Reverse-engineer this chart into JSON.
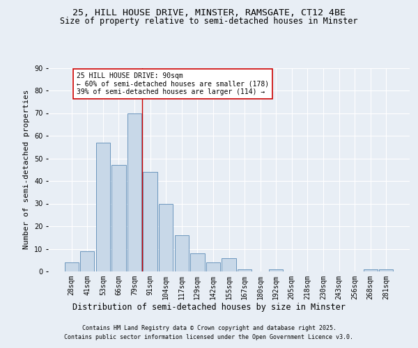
{
  "title_line1": "25, HILL HOUSE DRIVE, MINSTER, RAMSGATE, CT12 4BE",
  "title_line2": "Size of property relative to semi-detached houses in Minster",
  "xlabel": "Distribution of semi-detached houses by size in Minster",
  "ylabel": "Number of semi-detached properties",
  "bar_labels": [
    "28sqm",
    "41sqm",
    "53sqm",
    "66sqm",
    "79sqm",
    "91sqm",
    "104sqm",
    "117sqm",
    "129sqm",
    "142sqm",
    "155sqm",
    "167sqm",
    "180sqm",
    "192sqm",
    "205sqm",
    "218sqm",
    "230sqm",
    "243sqm",
    "256sqm",
    "268sqm",
    "281sqm"
  ],
  "bar_values": [
    4,
    9,
    57,
    47,
    70,
    44,
    30,
    16,
    8,
    4,
    6,
    1,
    0,
    1,
    0,
    0,
    0,
    0,
    0,
    1,
    1
  ],
  "bar_color": "#c8d8e8",
  "bar_edge_color": "#5a8ab5",
  "annotation_title": "25 HILL HOUSE DRIVE: 90sqm",
  "annotation_line2": "← 60% of semi-detached houses are smaller (178)",
  "annotation_line3": "39% of semi-detached houses are larger (114) →",
  "vline_index": 5,
  "vline_color": "#cc0000",
  "annotation_box_color": "#ffffff",
  "annotation_box_edge": "#cc0000",
  "ylim": [
    0,
    90
  ],
  "yticks": [
    0,
    10,
    20,
    30,
    40,
    50,
    60,
    70,
    80,
    90
  ],
  "background_color": "#e8eef5",
  "footer_line1": "Contains HM Land Registry data © Crown copyright and database right 2025.",
  "footer_line2": "Contains public sector information licensed under the Open Government Licence v3.0.",
  "grid_color": "#ffffff",
  "title_fontsize": 9.5,
  "subtitle_fontsize": 8.5,
  "ylabel_fontsize": 8,
  "xlabel_fontsize": 8.5,
  "tick_fontsize": 7,
  "ann_fontsize": 7,
  "footer_fontsize": 6
}
